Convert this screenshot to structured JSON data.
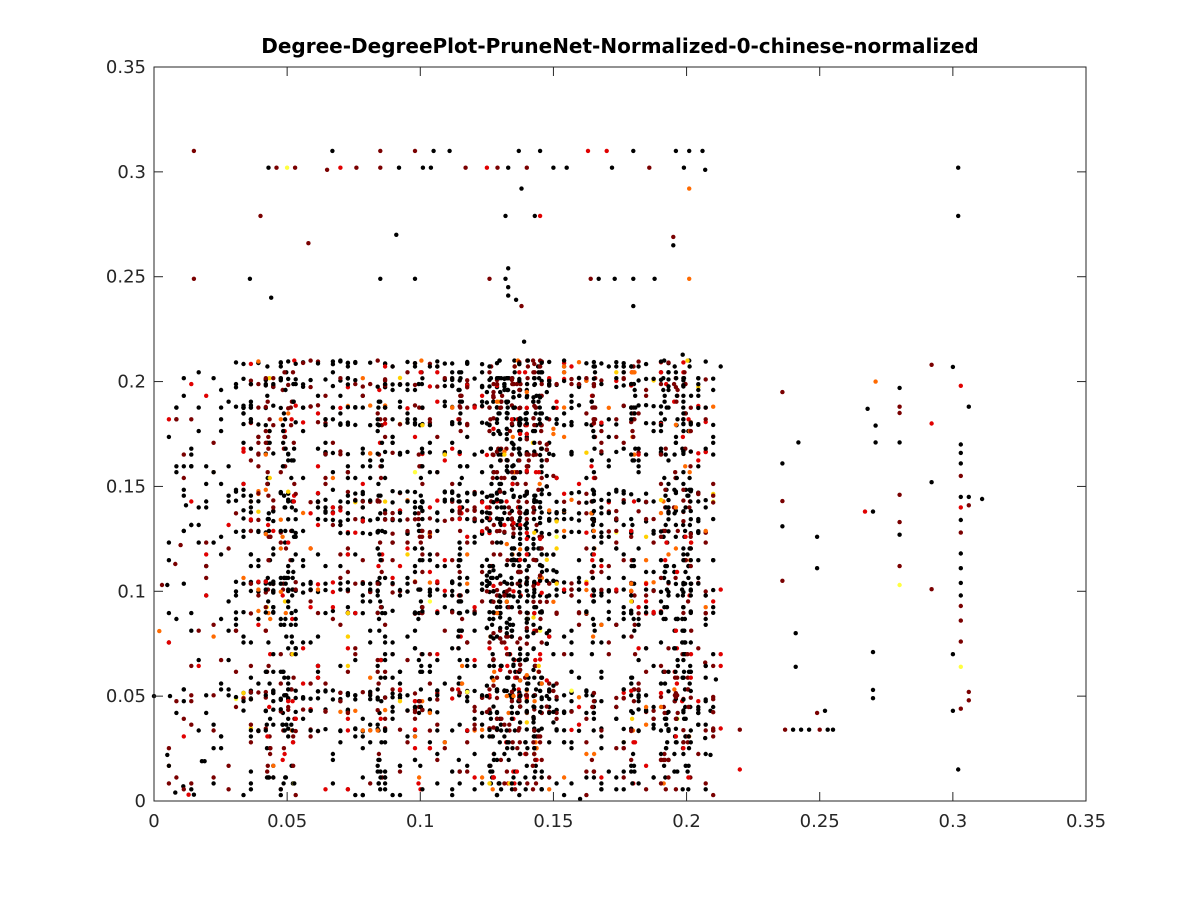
{
  "chart_data": {
    "type": "scatter",
    "title": "Degree-DegreePlot-PruneNet-Normalized-0-chinese-normalized",
    "xlabel": "",
    "ylabel": "",
    "xlim": [
      0,
      0.35
    ],
    "ylim": [
      0,
      0.35
    ],
    "xticks": [
      0,
      0.05,
      0.1,
      0.15,
      0.2,
      0.25,
      0.3,
      0.35
    ],
    "yticks": [
      0,
      0.05,
      0.1,
      0.15,
      0.2,
      0.25,
      0.3,
      0.35
    ],
    "xtick_labels": [
      "0",
      "0.05",
      "0.1",
      "0.15",
      "0.2",
      "0.25",
      "0.3",
      "0.35"
    ],
    "ytick_labels": [
      "0",
      "0.05",
      "0.1",
      "0.15",
      "0.2",
      "0.25",
      "0.3",
      "0.35"
    ],
    "grid": false,
    "colormap": [
      "#000000",
      "#7a0000",
      "#e00000",
      "#ff6a00",
      "#ffd000",
      "#ffff40"
    ],
    "color_weights": [
      0.62,
      0.24,
      0.08,
      0.04,
      0.015,
      0.005
    ],
    "points": [
      [
        0.015,
        0.31
      ],
      [
        0.043,
        0.302
      ],
      [
        0.046,
        0.302
      ],
      [
        0.05,
        0.302
      ],
      [
        0.053,
        0.302
      ],
      [
        0.065,
        0.301
      ],
      [
        0.067,
        0.31
      ],
      [
        0.07,
        0.302
      ],
      [
        0.076,
        0.302
      ],
      [
        0.085,
        0.31
      ],
      [
        0.085,
        0.302
      ],
      [
        0.092,
        0.302
      ],
      [
        0.098,
        0.31
      ],
      [
        0.101,
        0.302
      ],
      [
        0.104,
        0.302
      ],
      [
        0.105,
        0.31
      ],
      [
        0.111,
        0.31
      ],
      [
        0.117,
        0.302
      ],
      [
        0.125,
        0.302
      ],
      [
        0.129,
        0.302
      ],
      [
        0.133,
        0.302
      ],
      [
        0.137,
        0.31
      ],
      [
        0.14,
        0.302
      ],
      [
        0.145,
        0.31
      ],
      [
        0.15,
        0.302
      ],
      [
        0.155,
        0.302
      ],
      [
        0.163,
        0.31
      ],
      [
        0.17,
        0.31
      ],
      [
        0.172,
        0.302
      ],
      [
        0.18,
        0.31
      ],
      [
        0.186,
        0.302
      ],
      [
        0.196,
        0.31
      ],
      [
        0.199,
        0.302
      ],
      [
        0.201,
        0.31
      ],
      [
        0.206,
        0.31
      ],
      [
        0.207,
        0.301
      ],
      [
        0.201,
        0.292
      ],
      [
        0.138,
        0.292
      ],
      [
        0.04,
        0.279
      ],
      [
        0.132,
        0.279
      ],
      [
        0.143,
        0.279
      ],
      [
        0.145,
        0.279
      ],
      [
        0.195,
        0.269
      ],
      [
        0.195,
        0.265
      ],
      [
        0.091,
        0.27
      ],
      [
        0.058,
        0.266
      ],
      [
        0.015,
        0.249
      ],
      [
        0.036,
        0.249
      ],
      [
        0.085,
        0.249
      ],
      [
        0.098,
        0.249
      ],
      [
        0.126,
        0.249
      ],
      [
        0.132,
        0.249
      ],
      [
        0.164,
        0.249
      ],
      [
        0.167,
        0.249
      ],
      [
        0.173,
        0.249
      ],
      [
        0.18,
        0.249
      ],
      [
        0.188,
        0.249
      ],
      [
        0.201,
        0.249
      ],
      [
        0.133,
        0.254
      ],
      [
        0.133,
        0.245
      ],
      [
        0.133,
        0.241
      ],
      [
        0.136,
        0.239
      ],
      [
        0.138,
        0.236
      ],
      [
        0.18,
        0.236
      ],
      [
        0.044,
        0.24
      ],
      [
        0.139,
        0.219
      ],
      [
        0.302,
        0.302
      ],
      [
        0.302,
        0.279
      ],
      [
        0.236,
        0.195
      ],
      [
        0.242,
        0.171
      ],
      [
        0.236,
        0.161
      ],
      [
        0.236,
        0.143
      ],
      [
        0.236,
        0.131
      ],
      [
        0.236,
        0.105
      ],
      [
        0.241,
        0.08
      ],
      [
        0.241,
        0.064
      ],
      [
        0.249,
        0.126
      ],
      [
        0.249,
        0.111
      ],
      [
        0.249,
        0.042
      ],
      [
        0.252,
        0.043
      ],
      [
        0.268,
        0.187
      ],
      [
        0.271,
        0.2
      ],
      [
        0.271,
        0.179
      ],
      [
        0.271,
        0.171
      ],
      [
        0.267,
        0.138
      ],
      [
        0.27,
        0.138
      ],
      [
        0.28,
        0.197
      ],
      [
        0.28,
        0.188
      ],
      [
        0.28,
        0.185
      ],
      [
        0.28,
        0.171
      ],
      [
        0.28,
        0.146
      ],
      [
        0.28,
        0.133
      ],
      [
        0.28,
        0.127
      ],
      [
        0.28,
        0.112
      ],
      [
        0.28,
        0.103
      ],
      [
        0.27,
        0.071
      ],
      [
        0.27,
        0.053
      ],
      [
        0.27,
        0.049
      ],
      [
        0.292,
        0.208
      ],
      [
        0.292,
        0.18
      ],
      [
        0.292,
        0.152
      ],
      [
        0.292,
        0.101
      ],
      [
        0.3,
        0.207
      ],
      [
        0.303,
        0.198
      ],
      [
        0.303,
        0.17
      ],
      [
        0.303,
        0.166
      ],
      [
        0.303,
        0.161
      ],
      [
        0.303,
        0.155
      ],
      [
        0.303,
        0.145
      ],
      [
        0.303,
        0.14
      ],
      [
        0.303,
        0.134
      ],
      [
        0.303,
        0.128
      ],
      [
        0.303,
        0.118
      ],
      [
        0.303,
        0.111
      ],
      [
        0.303,
        0.104
      ],
      [
        0.303,
        0.098
      ],
      [
        0.303,
        0.093
      ],
      [
        0.303,
        0.086
      ],
      [
        0.303,
        0.076
      ],
      [
        0.303,
        0.064
      ],
      [
        0.3,
        0.07
      ],
      [
        0.303,
        0.044
      ],
      [
        0.3,
        0.043
      ],
      [
        0.302,
        0.015
      ],
      [
        0.306,
        0.188
      ],
      [
        0.306,
        0.145
      ],
      [
        0.306,
        0.141
      ],
      [
        0.306,
        0.052
      ],
      [
        0.306,
        0.048
      ],
      [
        0.311,
        0.144
      ],
      [
        0.22,
        0.034
      ],
      [
        0.22,
        0.015
      ],
      [
        0.237,
        0.034
      ],
      [
        0.24,
        0.034
      ],
      [
        0.243,
        0.034
      ],
      [
        0.246,
        0.034
      ],
      [
        0.25,
        0.034
      ],
      [
        0.253,
        0.034
      ],
      [
        0.255,
        0.034
      ],
      [
        0.207,
        0.066
      ],
      [
        0.209,
        0.043
      ],
      [
        0.211,
        0.058
      ],
      [
        0.209,
        0.022
      ],
      [
        0.207,
        0.03
      ],
      [
        0.16,
        0.001
      ],
      [
        0.0,
        0.05
      ],
      [
        0.002,
        0.081
      ],
      [
        0.003,
        0.103
      ],
      [
        0.005,
        0.103
      ],
      [
        0.008,
        0.113
      ],
      [
        0.01,
        0.122
      ],
      [
        0.012,
        0.141
      ],
      [
        0.006,
        0.05
      ],
      [
        0.008,
        0.004
      ],
      [
        0.011,
        0.007
      ],
      [
        0.013,
        0.003
      ],
      [
        0.015,
        0.003
      ],
      [
        0.005,
        0.022
      ],
      [
        0.018,
        0.019
      ],
      [
        0.019,
        0.019
      ]
    ],
    "dense_region": {
      "x": [
        0.03,
        0.212
      ],
      "y": [
        0.0,
        0.212
      ]
    },
    "dense_columns": [
      0.043,
      0.049,
      0.052,
      0.085,
      0.1,
      0.115,
      0.127,
      0.13,
      0.133,
      0.135,
      0.137,
      0.14,
      0.143,
      0.145,
      0.165,
      0.18,
      0.192,
      0.196,
      0.199,
      0.201
    ],
    "dense_rows": [
      0.034,
      0.043,
      0.049,
      0.052,
      0.09,
      0.1,
      0.104,
      0.128,
      0.134,
      0.138,
      0.143,
      0.147,
      0.166,
      0.18,
      0.188,
      0.198,
      0.201,
      0.209
    ]
  }
}
